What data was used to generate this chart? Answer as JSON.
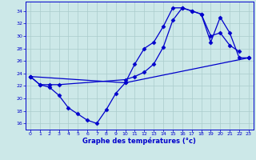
{
  "title": "Graphe des températures (°c)",
  "bg_color": "#cce8e8",
  "grid_color": "#aacccc",
  "line_color": "#0000cc",
  "xlim": [
    -0.5,
    23.5
  ],
  "ylim": [
    15,
    35.5
  ],
  "yticks": [
    16,
    18,
    20,
    22,
    24,
    26,
    28,
    30,
    32,
    34
  ],
  "xticks": [
    0,
    1,
    2,
    3,
    4,
    5,
    6,
    7,
    8,
    9,
    10,
    11,
    12,
    13,
    14,
    15,
    16,
    17,
    18,
    19,
    20,
    21,
    22,
    23
  ],
  "curve1_x": [
    0,
    1,
    2,
    3,
    4,
    5,
    6,
    7,
    8,
    9,
    10,
    11,
    12,
    13,
    14,
    15,
    16,
    17,
    18,
    19,
    20,
    21,
    22
  ],
  "curve1_y": [
    23.5,
    22.2,
    21.8,
    20.5,
    18.5,
    17.5,
    16.5,
    16.0,
    18.2,
    20.8,
    22.5,
    25.5,
    28.0,
    29.0,
    31.5,
    34.5,
    34.5,
    34.0,
    33.5,
    30.0,
    30.5,
    28.5,
    27.5
  ],
  "curve2_x": [
    0,
    1,
    2,
    3,
    10,
    11,
    12,
    13,
    14,
    15,
    16,
    17,
    18,
    19,
    20,
    21,
    22,
    23
  ],
  "curve2_y": [
    23.5,
    22.2,
    22.2,
    22.2,
    23.0,
    23.5,
    24.2,
    25.5,
    28.2,
    32.5,
    34.5,
    34.0,
    33.5,
    29.0,
    33.0,
    30.5,
    26.5,
    26.5
  ],
  "curve3_x": [
    0,
    10,
    23
  ],
  "curve3_y": [
    23.5,
    22.5,
    26.5
  ]
}
